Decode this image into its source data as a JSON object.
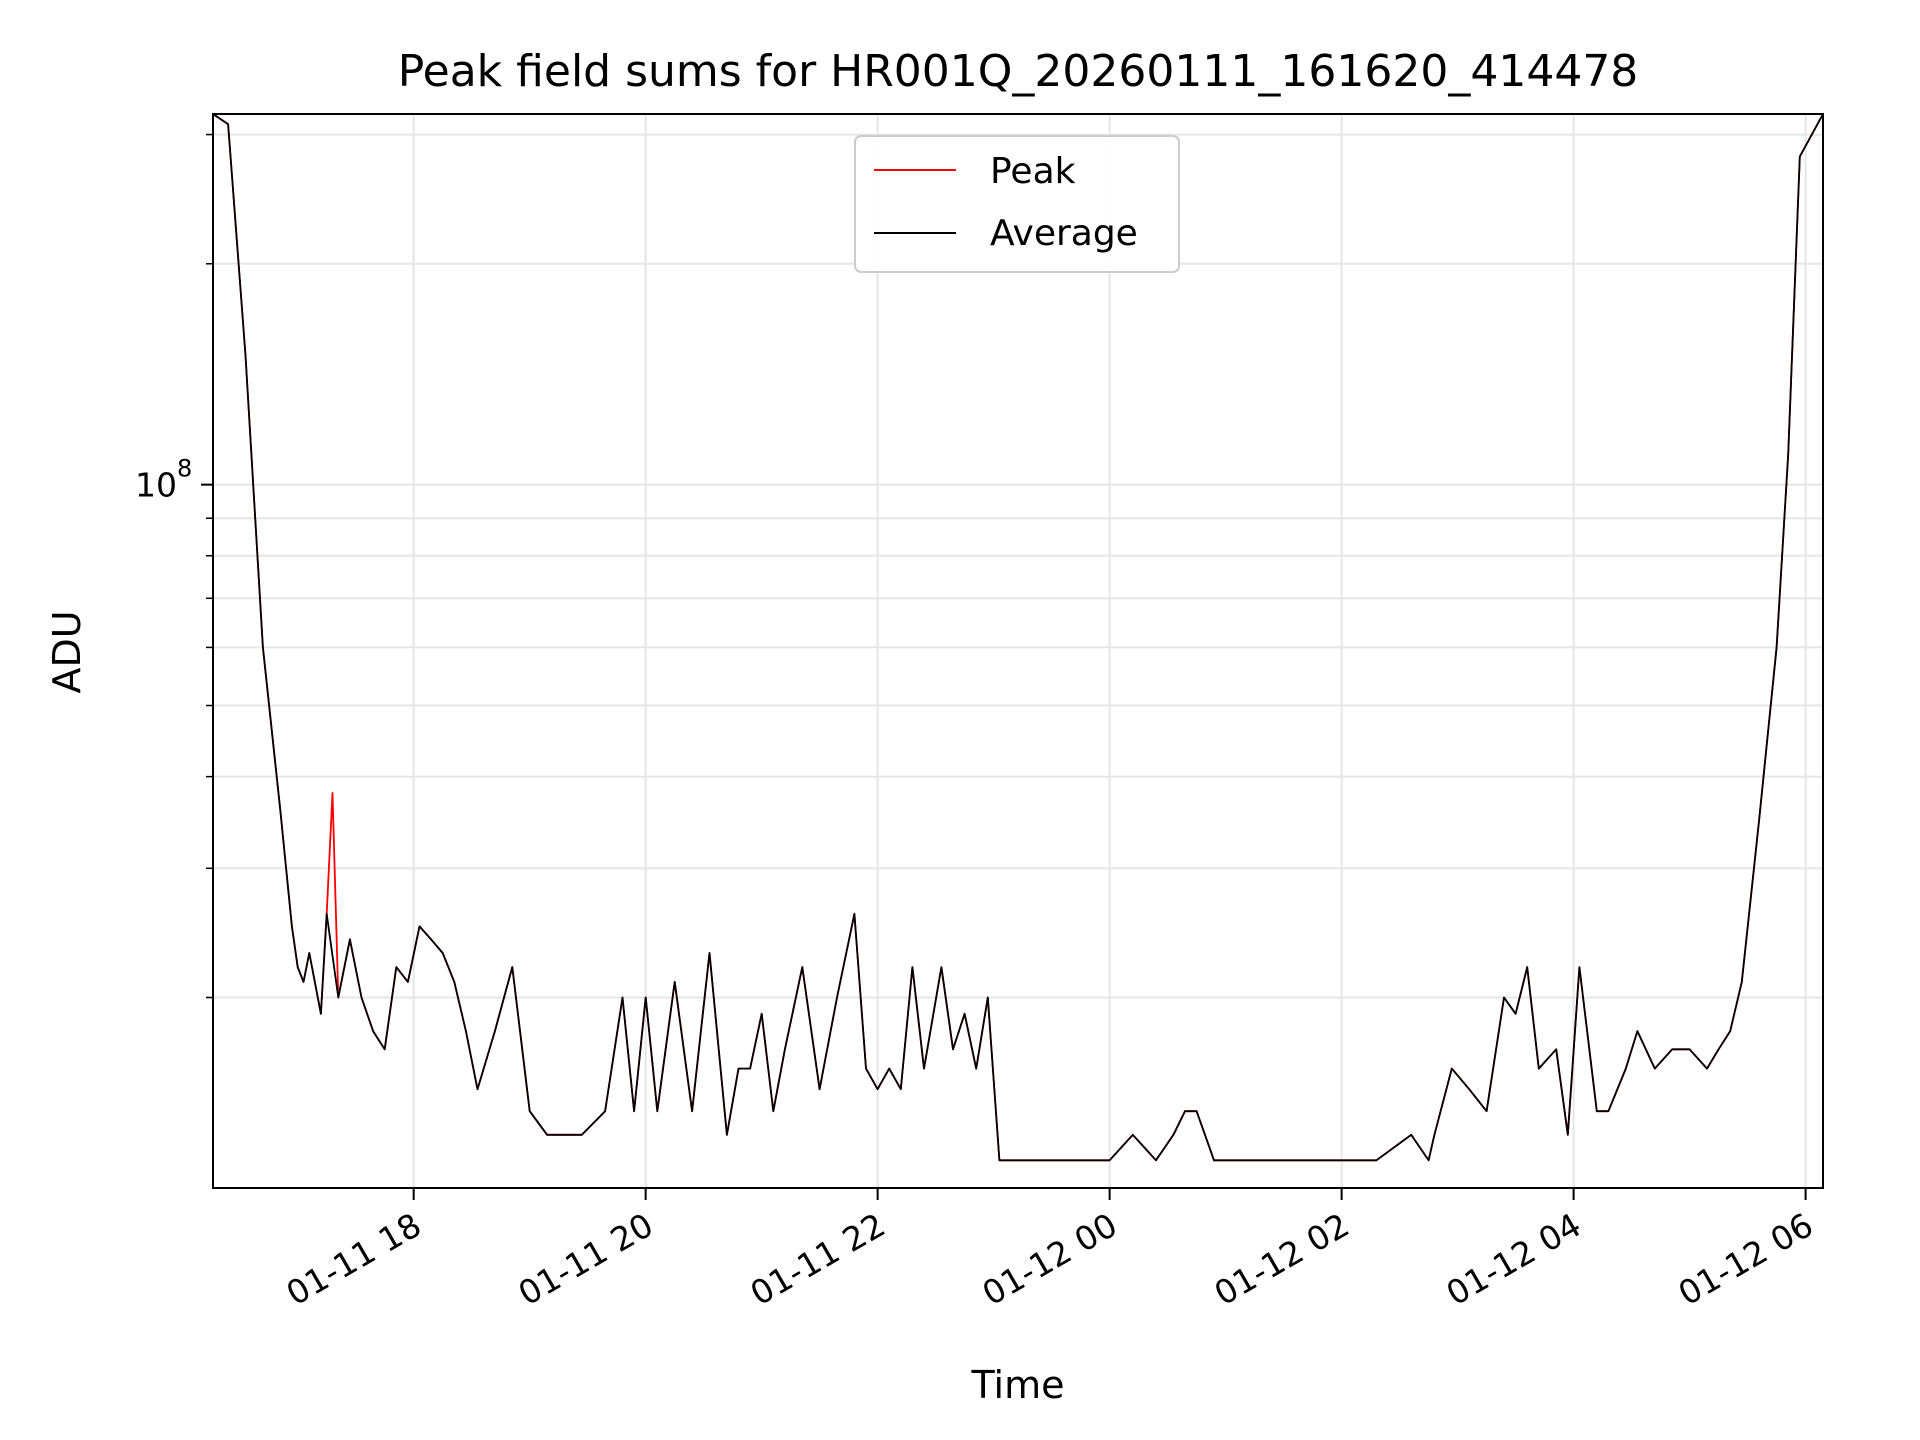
{
  "chart_data": {
    "type": "line",
    "title": "Peak field sums for HR001Q_20260111_161620_414478",
    "xlabel": "Time",
    "ylabel": "ADU",
    "yscale": "log",
    "ylim": [
      11000000,
      320000000
    ],
    "xlim_hours": [
      16.27,
      30.15
    ],
    "x_ticks": [
      {
        "hour": 18,
        "label": "01-11 18"
      },
      {
        "hour": 20,
        "label": "01-11 20"
      },
      {
        "hour": 22,
        "label": "01-11 22"
      },
      {
        "hour": 24,
        "label": "01-12 00"
      },
      {
        "hour": 26,
        "label": "01-12 02"
      },
      {
        "hour": 28,
        "label": "01-12 04"
      },
      {
        "hour": 30,
        "label": "01-12 06"
      }
    ],
    "y_major_ticks": [
      {
        "value": 100000000,
        "label_base": "10",
        "label_exp": "8"
      }
    ],
    "y_minor_ticks": [
      20000000,
      30000000,
      40000000,
      50000000,
      60000000,
      70000000,
      80000000,
      90000000,
      200000000,
      300000000
    ],
    "grid": true,
    "legend": {
      "position": "upper-center",
      "entries": [
        "Peak",
        "Average"
      ]
    },
    "series": [
      {
        "name": "Average",
        "color": "#000000",
        "x_hours": [
          16.27,
          16.4,
          16.55,
          16.7,
          16.85,
          16.95,
          17.0,
          17.05,
          17.1,
          17.2,
          17.25,
          17.35,
          17.45,
          17.55,
          17.65,
          17.75,
          17.85,
          17.95,
          18.05,
          18.15,
          18.25,
          18.35,
          18.45,
          18.55,
          18.7,
          18.85,
          19.0,
          19.15,
          19.3,
          19.45,
          19.65,
          19.8,
          19.9,
          20.0,
          20.1,
          20.25,
          20.4,
          20.55,
          20.7,
          20.8,
          20.9,
          21.0,
          21.1,
          21.2,
          21.35,
          21.5,
          21.65,
          21.8,
          21.9,
          22.0,
          22.1,
          22.2,
          22.3,
          22.4,
          22.55,
          22.65,
          22.75,
          22.85,
          22.95,
          23.05,
          23.15,
          23.3,
          23.45,
          23.55,
          23.7,
          23.85,
          24.0,
          24.2,
          24.4,
          24.55,
          24.65,
          24.75,
          24.9,
          25.1,
          25.4,
          25.7,
          26.0,
          26.3,
          26.6,
          26.75,
          26.8,
          26.95,
          27.1,
          27.25,
          27.4,
          27.5,
          27.6,
          27.7,
          27.85,
          27.95,
          28.05,
          28.2,
          28.3,
          28.45,
          28.55,
          28.7,
          28.85,
          29.0,
          29.15,
          29.25,
          29.35,
          29.45,
          29.6,
          29.75,
          29.85,
          29.95,
          30.15
        ],
        "values_M": [
          320,
          310,
          150,
          60,
          36,
          25,
          22,
          21,
          23,
          19,
          26,
          20,
          24,
          20,
          18,
          17,
          22,
          21,
          25,
          24,
          23,
          21,
          18,
          15,
          18,
          22,
          14,
          13,
          13,
          13,
          14,
          20,
          14,
          20,
          14,
          21,
          14,
          23,
          13,
          16,
          16,
          19,
          14,
          17,
          22,
          15,
          20,
          26,
          16,
          15,
          16,
          15,
          22,
          16,
          22,
          17,
          19,
          16,
          20,
          12,
          12,
          12,
          12,
          12,
          12,
          12,
          12,
          13,
          12,
          13,
          14,
          14,
          12,
          12,
          12,
          12,
          12,
          12,
          13,
          12,
          13,
          16,
          15,
          14,
          20,
          19,
          22,
          16,
          17,
          13,
          22,
          14,
          14,
          16,
          18,
          16,
          17,
          17,
          16,
          17,
          18,
          21,
          35,
          60,
          110,
          280,
          320
        ]
      },
      {
        "name": "Peak",
        "color": "#ff0000",
        "x_hours": [
          16.27,
          16.4,
          16.55,
          16.7,
          16.85,
          16.95,
          17.0,
          17.05,
          17.1,
          17.2,
          17.25,
          17.3,
          17.35,
          17.45,
          17.55,
          17.65,
          17.75,
          17.85,
          17.95,
          18.05,
          18.15,
          18.25,
          18.35,
          18.45,
          18.55,
          18.7,
          18.85,
          19.0,
          19.15,
          19.3,
          19.45,
          19.65,
          19.8,
          19.9,
          20.0,
          20.1,
          20.25,
          20.4,
          20.55,
          20.7,
          20.8,
          20.9,
          21.0,
          21.1,
          21.2,
          21.35,
          21.5,
          21.65,
          21.8,
          21.9,
          22.0,
          22.1,
          22.2,
          22.3,
          22.4,
          22.55,
          22.65,
          22.75,
          22.85,
          22.95,
          23.05,
          23.15,
          23.3,
          23.45,
          23.55,
          23.7,
          23.85,
          24.0,
          24.2,
          24.4,
          24.55,
          24.65,
          24.75,
          24.9,
          25.1,
          25.4,
          25.7,
          26.0,
          26.3,
          26.6,
          26.75,
          26.8,
          26.95,
          27.1,
          27.25,
          27.4,
          27.5,
          27.6,
          27.7,
          27.85,
          27.95,
          28.05,
          28.2,
          28.3,
          28.45,
          28.55,
          28.7,
          28.85,
          29.0,
          29.15,
          29.25,
          29.35,
          29.45,
          29.6,
          29.75,
          29.85,
          29.95,
          30.15
        ],
        "values_M": [
          320,
          310,
          150,
          60,
          36,
          25,
          22,
          21,
          23,
          19,
          26,
          38,
          20,
          24,
          20,
          18,
          17,
          22,
          21,
          25,
          24,
          23,
          21,
          18,
          15,
          18,
          22,
          14,
          13,
          13,
          13,
          14,
          20,
          14,
          20,
          14,
          21,
          14,
          23,
          13,
          16,
          16,
          19,
          14,
          17,
          22,
          15,
          20,
          26,
          16,
          15,
          16,
          15,
          22,
          16,
          22,
          17,
          19,
          16,
          20,
          12,
          12,
          12,
          12,
          12,
          12,
          12,
          12,
          13,
          12,
          13,
          14,
          14,
          12,
          12,
          12,
          12,
          12,
          12,
          13,
          12,
          13,
          16,
          15,
          14,
          20,
          19,
          22,
          16,
          17,
          13,
          22,
          14,
          14,
          16,
          18,
          16,
          17,
          17,
          16,
          17,
          18,
          21,
          35,
          60,
          110,
          280,
          320
        ]
      }
    ]
  }
}
